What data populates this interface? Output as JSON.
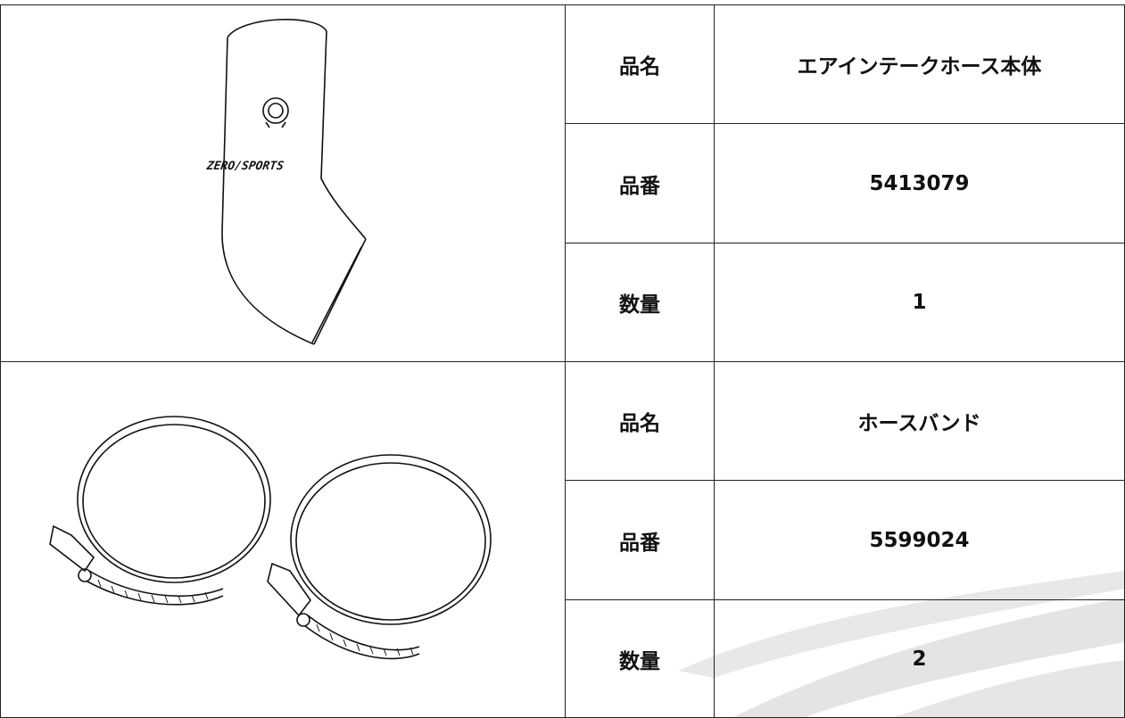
{
  "parts": [
    {
      "image_text": "ZERO/SPORTS",
      "rows": [
        [
          "品名",
          "エアインテークホース本体"
        ],
        [
          "品番",
          "5413079"
        ],
        [
          "数量",
          1
        ]
      ]
    },
    {
      "rows": [
        [
          "品名",
          "ホースバンド"
        ],
        [
          "品番",
          "5599024"
        ],
        [
          "数量",
          2
        ]
      ]
    }
  ]
}
